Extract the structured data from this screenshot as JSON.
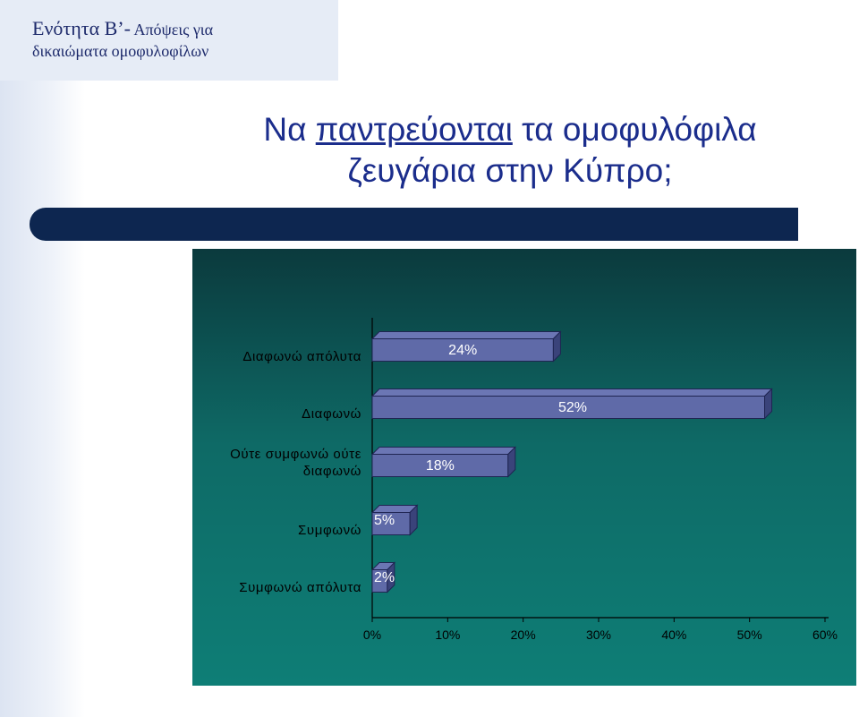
{
  "section": {
    "line1_main": "Ενότητα Β’-",
    "line1_small": " Απόψεις για",
    "line2": "δικαιώματα ομοφυλοφίλων"
  },
  "title": {
    "underlined": "παντρεύονται",
    "before": "Να ",
    "after": " τα ομοφυλόφιλα",
    "line2": "ζευγάρια στην Κύπρο;"
  },
  "colors": {
    "bar_front": "#5f6aa8",
    "bar_top": "#6b76b4",
    "bar_side": "#3a437a",
    "bar_stroke": "#1f2552",
    "panel": "#0e6a66"
  },
  "chart_data": {
    "type": "bar",
    "orientation": "horizontal",
    "style": "3d",
    "categories": [
      [
        "Διαφωνώ απόλυτα"
      ],
      [
        "Διαφωνώ"
      ],
      [
        "Ούτε συμφωνώ ούτε",
        "διαφωνώ"
      ],
      [
        "Συμφωνώ"
      ],
      [
        "Συμφωνώ απόλυτα"
      ]
    ],
    "values": [
      24,
      52,
      18,
      5,
      2
    ],
    "data_labels": [
      "24%",
      "52%",
      "18%",
      "5%",
      "2%"
    ],
    "xlim": [
      0,
      60
    ],
    "xticks": [
      0,
      10,
      20,
      30,
      40,
      50,
      60
    ],
    "xtick_labels": [
      "0%",
      "10%",
      "20%",
      "30%",
      "40%",
      "50%",
      "60%"
    ],
    "title": "",
    "xlabel": "",
    "ylabel": "",
    "grid": false,
    "legend": "none"
  }
}
